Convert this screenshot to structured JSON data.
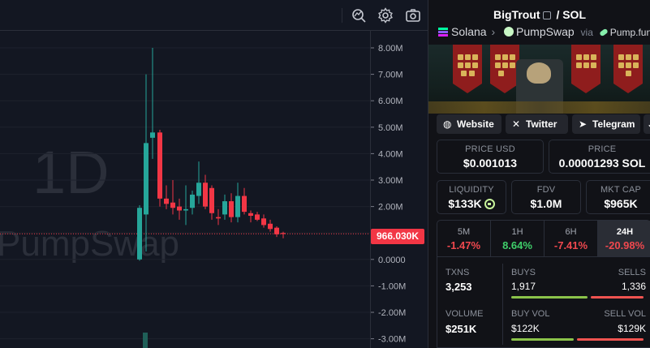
{
  "chart": {
    "interval_watermark": "1D",
    "dex_watermark": "PumpSwap",
    "last_price_label": "966.030K",
    "y_axis_ticks": [
      "8.00M",
      "7.00M",
      "6.00M",
      "5.00M",
      "4.00M",
      "3.00M",
      "2.00M",
      "1.00M",
      "0.0000",
      "-1.00M",
      "-2.00M",
      "-3.00M"
    ],
    "toolbar_icons": [
      "indicator-search-icon",
      "settings-gear-icon",
      "camera-snapshot-icon"
    ],
    "colors": {
      "up": "#26a69a",
      "down": "#f23645",
      "background": "#131722",
      "grid": "#1e222d"
    }
  },
  "pair": {
    "base": "BigTrout",
    "separator": "/",
    "quote": "SOL",
    "chain": "Solana",
    "dex": "PumpSwap",
    "via_label": "via",
    "launchpad": "Pump.fun"
  },
  "links": {
    "website": "Website",
    "twitter": "Twitter",
    "telegram": "Telegram",
    "more_icon": "chevron-down-icon"
  },
  "metrics": {
    "price_usd_label": "PRICE USD",
    "price_usd": "$0.001013",
    "price_label": "PRICE",
    "price_sol": "0.00001293 SOL",
    "liquidity_label": "LIQUIDITY",
    "liquidity": "$133K",
    "fdv_label": "FDV",
    "fdv": "$1.0M",
    "mktcap_label": "MKT CAP",
    "mktcap": "$965K"
  },
  "timeframes": [
    {
      "label": "5M",
      "change": "-1.47%"
    },
    {
      "label": "1H",
      "change": "8.64%"
    },
    {
      "label": "6H",
      "change": "-7.41%"
    },
    {
      "label": "24H",
      "change": "-20.98%"
    }
  ],
  "stats": {
    "txns_label": "TXNS",
    "txns": "3,253",
    "buys_label": "BUYS",
    "buys": "1,917",
    "sells_label": "SELLS",
    "sells": "1,336",
    "volume_label": "VOLUME",
    "volume": "$251K",
    "buy_vol_label": "BUY VOL",
    "buy_vol": "$122K",
    "sell_vol_label": "SELL VOL",
    "sell_vol": "$129K",
    "buys_ratio": 0.589,
    "buy_vol_ratio": 0.486
  }
}
